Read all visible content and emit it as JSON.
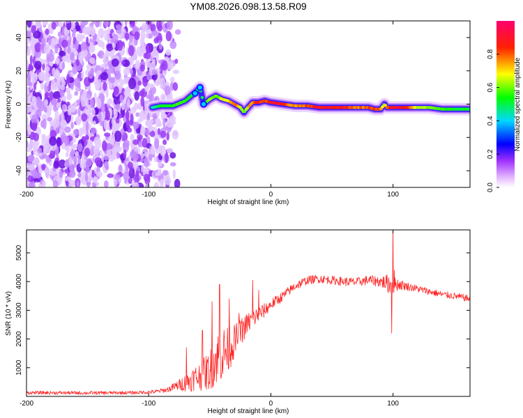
{
  "title": "YM08.2026.098.13.58.R09",
  "chart_data": [
    {
      "type": "heatmap",
      "name": "spectrogram",
      "xlabel": "Height of straight line (km)",
      "ylabel": "Frequency (Hz)",
      "xlim": [
        -200,
        163
      ],
      "ylim": [
        -50,
        50
      ],
      "xticks": [
        -200,
        -100,
        0,
        100
      ],
      "yticks": [
        -40,
        -20,
        0,
        20,
        40
      ],
      "colorbar": {
        "label": "Normalized spectral amplitude",
        "range": [
          0,
          1
        ],
        "ticks": [
          "0.0",
          "0.2",
          "0.4",
          "0.6",
          "0.8"
        ],
        "tick_values": [
          0.0,
          0.2,
          0.4,
          0.6,
          0.8
        ],
        "colors": [
          "#ffffff",
          "#c050ff",
          "#0000ff",
          "#00ffff",
          "#00ff00",
          "#ffff00",
          "#ff0000",
          "#ff0088"
        ]
      },
      "noise_region_x": [
        -200,
        -92
      ],
      "ridge": {
        "x": [
          -97,
          -90,
          -80,
          -70,
          -62,
          -58,
          -55,
          -50,
          -45,
          -40,
          -35,
          -30,
          -25,
          -22,
          -20,
          -15,
          -10,
          -5,
          0,
          10,
          20,
          30,
          40,
          50,
          60,
          70,
          80,
          85,
          90,
          93,
          95,
          100,
          110,
          120,
          130,
          140,
          150,
          163
        ],
        "y": [
          -2,
          -1,
          -1,
          2,
          7,
          10,
          0,
          3,
          5,
          3,
          2,
          0,
          -2,
          -5,
          -3,
          1,
          1,
          2,
          1,
          0,
          -1,
          -1,
          -2,
          -2,
          -2,
          -2,
          -2,
          -3,
          -3,
          0,
          -2,
          -2,
          -2,
          -2,
          -2,
          -3,
          -3,
          -3
        ],
        "amp": [
          0.45,
          0.55,
          0.6,
          0.6,
          0.55,
          0.5,
          0.5,
          0.65,
          0.6,
          0.7,
          0.75,
          0.85,
          0.7,
          0.65,
          0.7,
          0.85,
          0.9,
          0.85,
          0.95,
          0.9,
          0.8,
          0.85,
          0.95,
          0.95,
          0.92,
          0.8,
          0.85,
          0.9,
          0.8,
          0.6,
          0.88,
          0.95,
          0.95,
          0.7,
          0.65,
          0.6,
          0.55,
          0.55
        ]
      }
    },
    {
      "type": "line",
      "name": "snr",
      "color": "#ff2222",
      "xlabel": "Height of straight line (km)",
      "ylabel": "SNR (10 * v/v)",
      "xlim": [
        -200,
        163
      ],
      "ylim": [
        0,
        5800
      ],
      "xticks": [
        -200,
        -100,
        0,
        100
      ],
      "yticks": [
        1000,
        2000,
        3000,
        4000,
        5000
      ],
      "x": [
        -200,
        -150,
        -110,
        -95,
        -85,
        -75,
        -68,
        -62,
        -58,
        -50,
        -45,
        -40,
        -35,
        -30,
        -25,
        -20,
        -15,
        -10,
        -5,
        0,
        10,
        20,
        30,
        40,
        50,
        60,
        70,
        80,
        90,
        95,
        98,
        100,
        102,
        105,
        110,
        120,
        130,
        140,
        150,
        163
      ],
      "mean": [
        130,
        120,
        130,
        160,
        230,
        400,
        500,
        650,
        700,
        900,
        1300,
        1500,
        1600,
        1900,
        2200,
        2500,
        2700,
        2850,
        3000,
        3200,
        3500,
        3850,
        4050,
        4100,
        4050,
        4000,
        3980,
        4050,
        4000,
        3950,
        3900,
        3850,
        3900,
        3900,
        3850,
        3750,
        3650,
        3550,
        3500,
        3400
      ],
      "noise": [
        60,
        60,
        60,
        70,
        90,
        200,
        350,
        450,
        500,
        700,
        900,
        1000,
        800,
        600,
        500,
        400,
        350,
        300,
        250,
        200,
        180,
        160,
        150,
        150,
        150,
        160,
        160,
        170,
        200,
        300,
        400,
        300,
        250,
        200,
        150,
        130,
        120,
        120,
        120,
        120
      ],
      "spikes": [
        {
          "x": -69,
          "y": 1700
        },
        {
          "x": -56,
          "y": 2300
        },
        {
          "x": -48,
          "y": 3300
        },
        {
          "x": -42,
          "y": 3900
        },
        {
          "x": -38,
          "y": 1900
        },
        {
          "x": -34,
          "y": 3400
        },
        {
          "x": -26,
          "y": 2900
        },
        {
          "x": -15,
          "y": 4050
        },
        {
          "x": -10,
          "y": 3700
        },
        {
          "x": 99,
          "y": 2200
        },
        {
          "x": 100,
          "y": 5900
        },
        {
          "x": 101,
          "y": 4400
        }
      ]
    }
  ]
}
